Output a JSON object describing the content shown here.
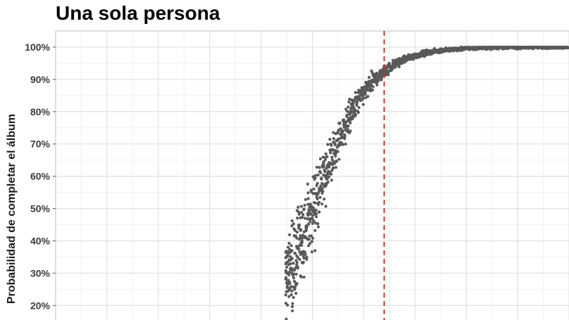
{
  "chart_data": {
    "type": "scatter",
    "title": "Una sola persona",
    "ylabel": "Probabilidad de completar el álbum",
    "xlabel": "",
    "ylim": [
      0.155,
      1.05
    ],
    "xlim": [
      0,
      1000
    ],
    "y_ticks": [
      0.2,
      0.3,
      0.4,
      0.5,
      0.6,
      0.7,
      0.8,
      0.9,
      1.0
    ],
    "y_tick_labels": [
      "20%",
      "30%",
      "40%",
      "50%",
      "60%",
      "70%",
      "80%",
      "90%",
      "100%"
    ],
    "x_gridlines": [
      0,
      50,
      100,
      150,
      200,
      250,
      300,
      350,
      400,
      450,
      500,
      550,
      600,
      650,
      700,
      750,
      800,
      850,
      900,
      950,
      1000
    ],
    "grid": true,
    "reference_line": {
      "x": 640,
      "style": "dashed",
      "color": "#c0392b"
    },
    "series": [
      {
        "color": "#595959",
        "x_range": [
          448,
          1000
        ],
        "model": "logistic",
        "midpoint": 502,
        "scale": 55,
        "spread": 0.045,
        "n_points": 1400
      }
    ]
  }
}
